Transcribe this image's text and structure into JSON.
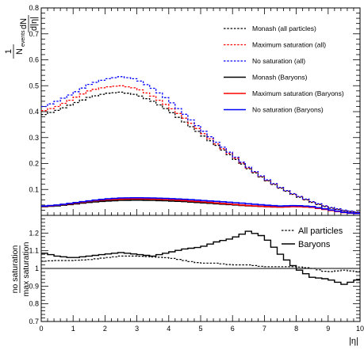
{
  "chart_data": [
    {
      "type": "line",
      "panel": "top",
      "ylim": [
        0,
        0.8
      ],
      "xlim": [
        0,
        10
      ],
      "y_ticks": [
        "0.1",
        "0.2",
        "0.3",
        "0.4",
        "0.5",
        "0.6",
        "0.7",
        "0.8"
      ],
      "ylabel": {
        "num_top": "1",
        "den": "N",
        "den_sub": "events",
        "frac_top": "dN",
        "frac_bottom": "d|η|"
      },
      "legend_placement": "top-right",
      "x": [
        0.0,
        0.5,
        1.0,
        1.5,
        2.0,
        2.5,
        3.0,
        3.5,
        4.0,
        4.5,
        5.0,
        5.5,
        6.0,
        6.5,
        7.0,
        7.5,
        8.0,
        8.5,
        9.0,
        9.5,
        10.0
      ],
      "series": [
        {
          "name": "Monash (all particles)",
          "color": "#000000",
          "style": "dashed",
          "values": [
            0.385,
            0.405,
            0.43,
            0.455,
            0.47,
            0.475,
            0.465,
            0.44,
            0.405,
            0.36,
            0.315,
            0.27,
            0.225,
            0.18,
            0.14,
            0.105,
            0.075,
            0.05,
            0.03,
            0.018,
            0.01
          ]
        },
        {
          "name": "Maximum saturation (all)",
          "color": "#ff0000",
          "style": "dashed",
          "values": [
            0.4,
            0.42,
            0.45,
            0.48,
            0.495,
            0.5,
            0.49,
            0.46,
            0.42,
            0.375,
            0.325,
            0.275,
            0.23,
            0.183,
            0.142,
            0.107,
            0.077,
            0.052,
            0.032,
            0.019,
            0.011
          ]
        },
        {
          "name": "No saturation (all)",
          "color": "#0000ff",
          "style": "dashed",
          "values": [
            0.415,
            0.44,
            0.47,
            0.505,
            0.525,
            0.535,
            0.525,
            0.49,
            0.445,
            0.39,
            0.335,
            0.282,
            0.234,
            0.186,
            0.144,
            0.108,
            0.078,
            0.053,
            0.033,
            0.02,
            0.012
          ]
        },
        {
          "name": "Monash (Baryons)",
          "color": "#000000",
          "style": "solid",
          "values": [
            0.033,
            0.037,
            0.043,
            0.05,
            0.055,
            0.058,
            0.059,
            0.058,
            0.056,
            0.053,
            0.049,
            0.045,
            0.041,
            0.037,
            0.034,
            0.032,
            0.035,
            0.032,
            0.022,
            0.012,
            0.006
          ]
        },
        {
          "name": "Maximum saturation (Baryons)",
          "color": "#ff0000",
          "style": "solid",
          "values": [
            0.034,
            0.039,
            0.046,
            0.054,
            0.06,
            0.063,
            0.064,
            0.063,
            0.061,
            0.057,
            0.053,
            0.048,
            0.043,
            0.038,
            0.034,
            0.032,
            0.034,
            0.031,
            0.021,
            0.011,
            0.006
          ]
        },
        {
          "name": "No saturation (Baryons)",
          "color": "#0000ff",
          "style": "solid",
          "values": [
            0.035,
            0.04,
            0.048,
            0.056,
            0.063,
            0.067,
            0.068,
            0.067,
            0.065,
            0.062,
            0.058,
            0.054,
            0.05,
            0.045,
            0.04,
            0.036,
            0.038,
            0.034,
            0.023,
            0.012,
            0.006
          ]
        }
      ]
    },
    {
      "type": "line",
      "panel": "bottom",
      "ylim": [
        0.7,
        1.3
      ],
      "xlim": [
        0,
        10
      ],
      "y_ticks": [
        "0.7",
        "0.8",
        "0.9",
        "1",
        "1.1",
        "1.2"
      ],
      "x_ticks": [
        "0",
        "1",
        "2",
        "3",
        "4",
        "5",
        "6",
        "7",
        "8",
        "9",
        "10"
      ],
      "xlabel": "|η|",
      "ylabel": {
        "top": "no saturation",
        "bottom": "max saturation"
      },
      "reference_line": 1.0,
      "legend_placement": "top-right",
      "x": [
        0.0,
        0.5,
        1.0,
        1.5,
        2.0,
        2.5,
        3.0,
        3.5,
        4.0,
        4.5,
        5.0,
        5.5,
        6.0,
        6.5,
        7.0,
        7.5,
        8.0,
        8.5,
        9.0,
        9.5,
        10.0
      ],
      "series": [
        {
          "name": "All particles",
          "color": "#000000",
          "style": "dashed",
          "values": [
            1.04,
            1.045,
            1.045,
            1.05,
            1.06,
            1.07,
            1.07,
            1.065,
            1.06,
            1.045,
            1.03,
            1.03,
            1.02,
            1.02,
            1.01,
            1.01,
            1.01,
            1.0,
            0.98,
            0.99,
            0.98
          ]
        },
        {
          "name": "Baryons",
          "color": "#000000",
          "style": "solid",
          "values": [
            1.09,
            1.07,
            1.06,
            1.07,
            1.08,
            1.09,
            1.08,
            1.07,
            1.09,
            1.11,
            1.12,
            1.15,
            1.17,
            1.21,
            1.18,
            1.08,
            1.0,
            0.95,
            0.94,
            0.91,
            0.94
          ]
        }
      ]
    }
  ]
}
